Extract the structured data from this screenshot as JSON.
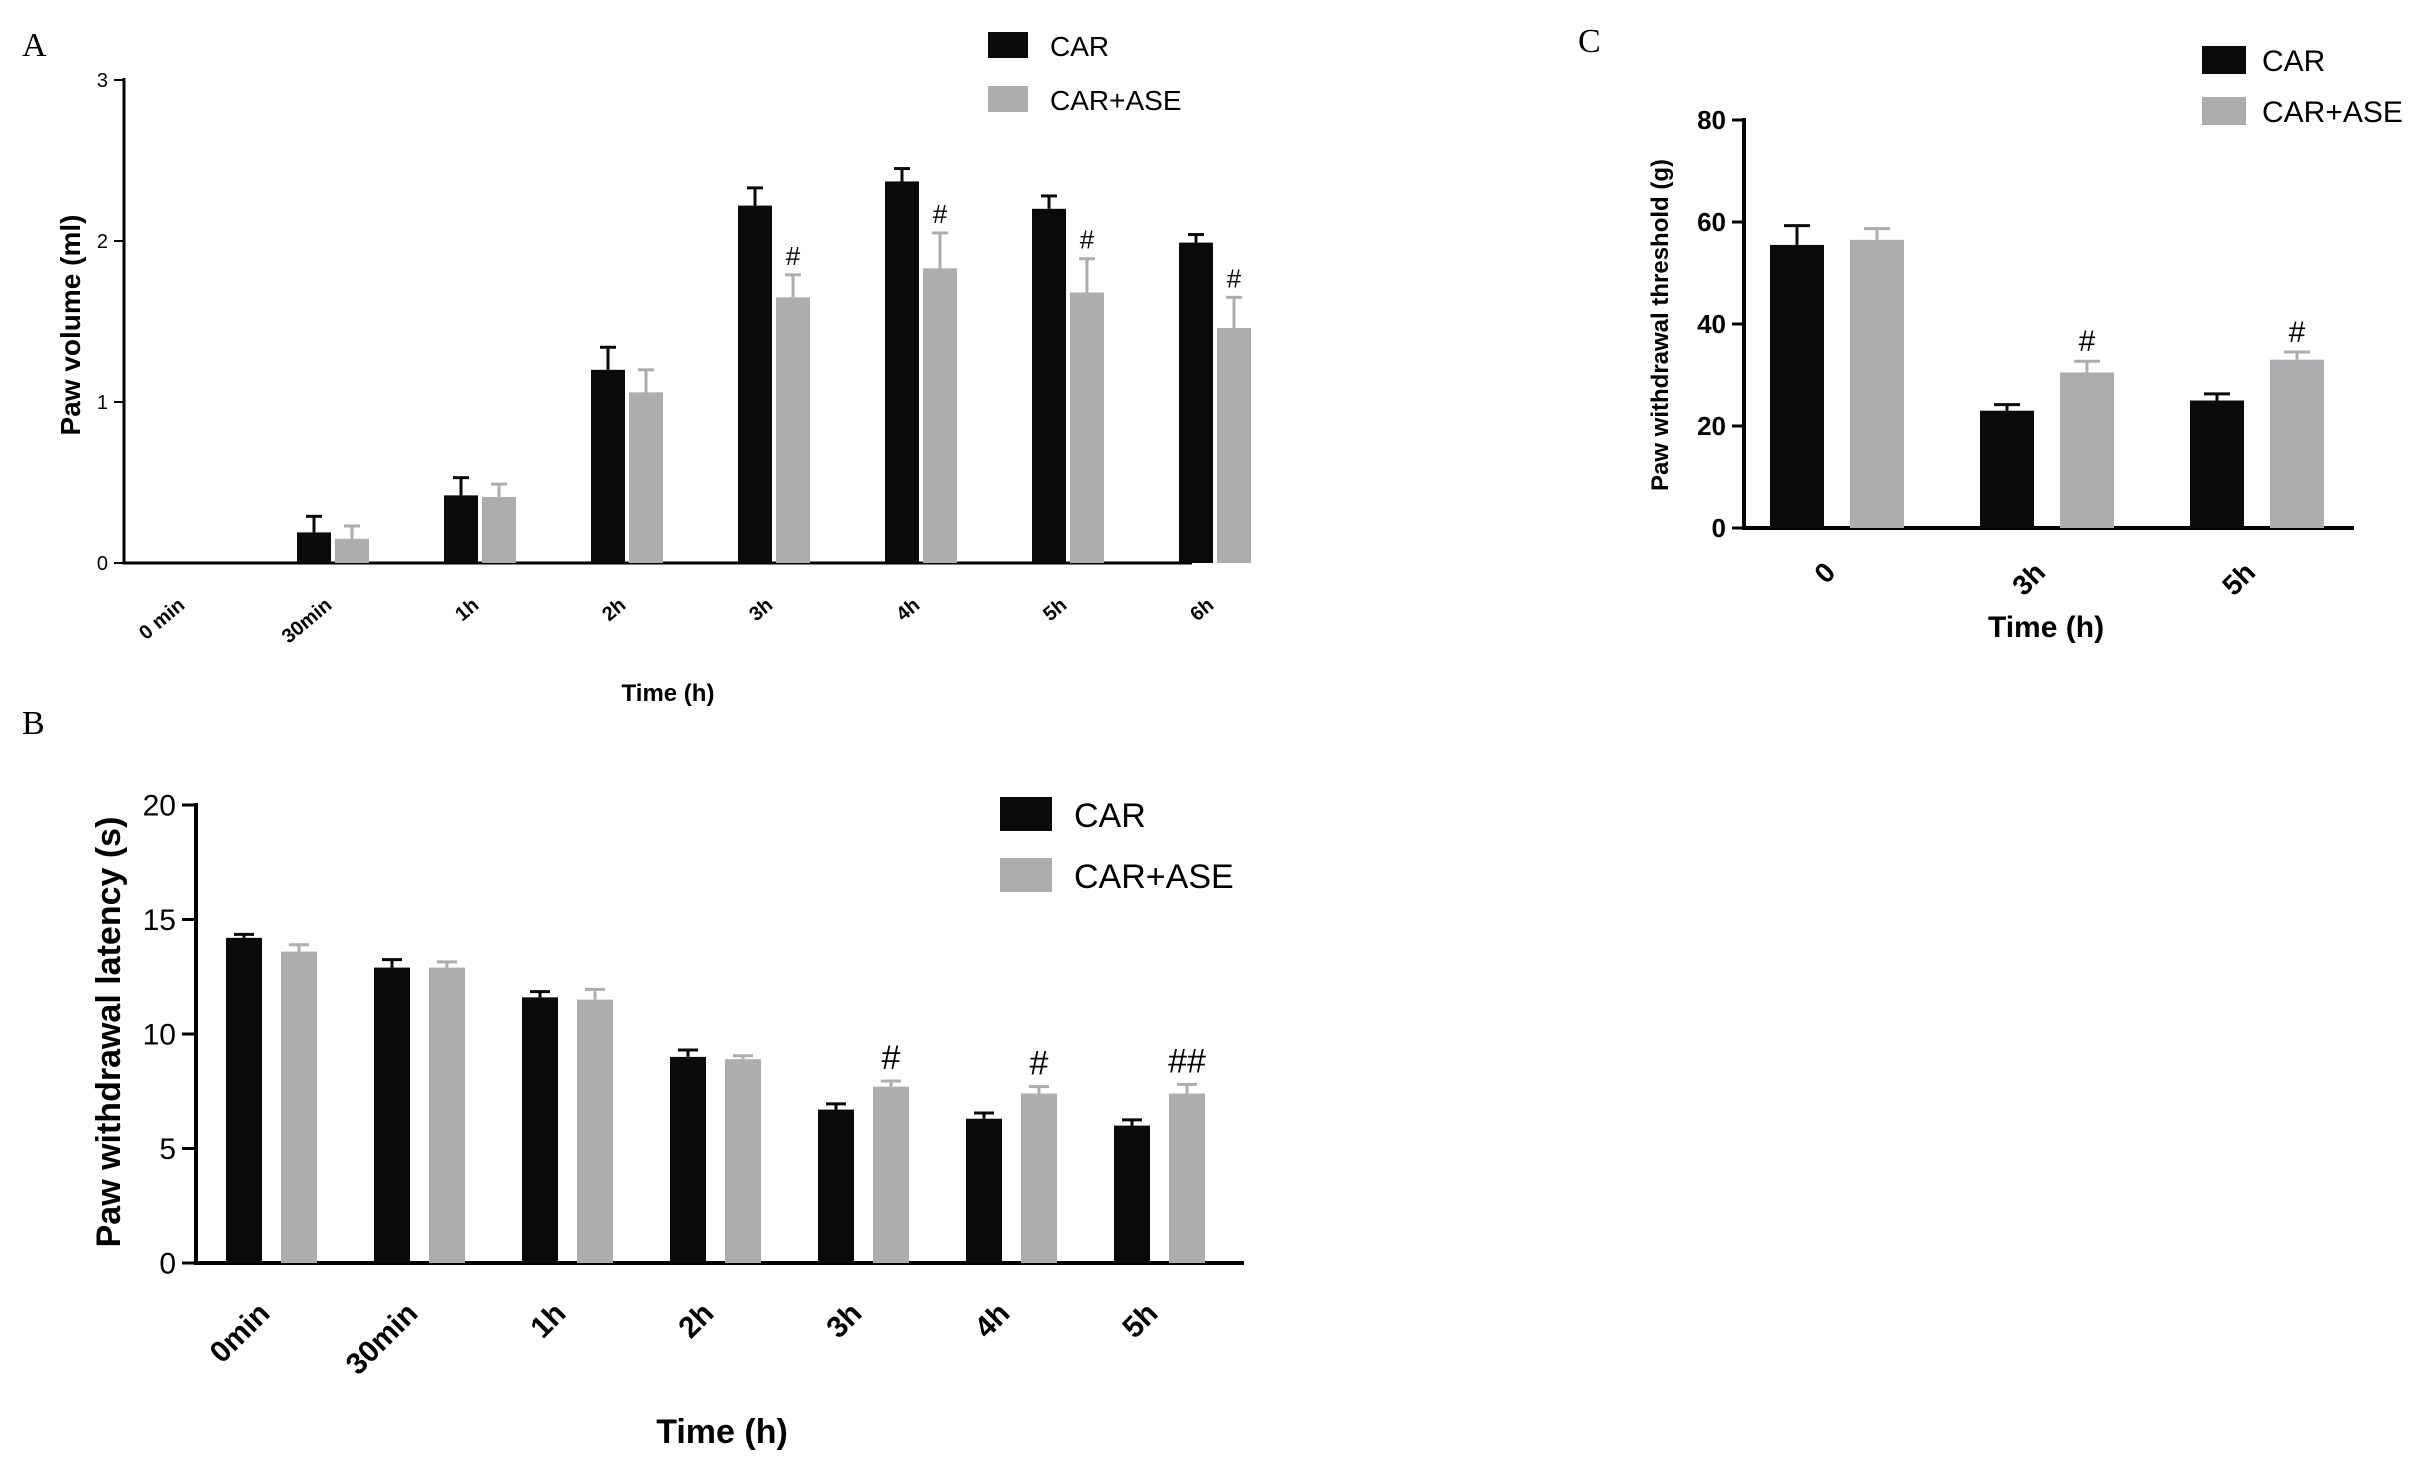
{
  "colors": {
    "car": "#0a0a0a",
    "car_ase": "#adadaf",
    "axis": "#000000"
  },
  "chart_data": [
    {
      "panel": "A",
      "type": "bar",
      "title": "",
      "xlabel": "Time (h)",
      "ylabel": "Paw volume (ml)",
      "ylim": [
        0,
        3
      ],
      "yticks": [
        "0",
        "1",
        "2",
        "3"
      ],
      "categories": [
        "0 min",
        "30min",
        "1h",
        "2h",
        "3h",
        "4h",
        "5h",
        "6h"
      ],
      "legend": [
        "CAR",
        "CAR+ASE"
      ],
      "legend_position": "top-right",
      "series": [
        {
          "name": "CAR",
          "values": [
            0,
            0.19,
            0.42,
            1.2,
            2.22,
            2.37,
            2.2,
            1.99
          ],
          "errors": [
            0,
            0.1,
            0.11,
            0.14,
            0.11,
            0.08,
            0.08,
            0.05
          ]
        },
        {
          "name": "CAR+ASE",
          "values": [
            0,
            0.15,
            0.41,
            1.06,
            1.65,
            1.83,
            1.68,
            1.46
          ],
          "errors": [
            0,
            0.08,
            0.08,
            0.14,
            0.14,
            0.22,
            0.21,
            0.19
          ]
        }
      ],
      "annotations": [
        {
          "category": "3h",
          "series": "CAR+ASE",
          "text": "#"
        },
        {
          "category": "4h",
          "series": "CAR+ASE",
          "text": "#"
        },
        {
          "category": "5h",
          "series": "CAR+ASE",
          "text": "#"
        },
        {
          "category": "6h",
          "series": "CAR+ASE",
          "text": "#"
        }
      ]
    },
    {
      "panel": "B",
      "type": "bar",
      "title": "",
      "xlabel": "Time (h)",
      "ylabel": "Paw withdrawal latency (s)",
      "ylim": [
        0,
        20
      ],
      "yticks": [
        "0",
        "5",
        "10",
        "15",
        "20"
      ],
      "categories": [
        "0min",
        "30min",
        "1h",
        "2h",
        "3h",
        "4h",
        "5h"
      ],
      "legend": [
        "CAR",
        "CAR+ASE"
      ],
      "legend_position": "top-right",
      "series": [
        {
          "name": "CAR",
          "values": [
            14.2,
            12.9,
            11.6,
            9.0,
            6.7,
            6.3,
            6.0
          ],
          "errors": [
            0.15,
            0.35,
            0.25,
            0.3,
            0.25,
            0.25,
            0.25
          ]
        },
        {
          "name": "CAR+ASE",
          "values": [
            13.6,
            12.9,
            11.5,
            8.9,
            7.7,
            7.4,
            7.4
          ],
          "errors": [
            0.3,
            0.25,
            0.45,
            0.15,
            0.25,
            0.3,
            0.4
          ]
        }
      ],
      "annotations": [
        {
          "category": "3h",
          "series": "CAR+ASE",
          "text": "#"
        },
        {
          "category": "4h",
          "series": "CAR+ASE",
          "text": "#"
        },
        {
          "category": "5h",
          "series": "CAR+ASE",
          "text": "##"
        }
      ]
    },
    {
      "panel": "C",
      "type": "bar",
      "title": "",
      "xlabel": "Time (h)",
      "ylabel": "Paw withdrawal threshold (g)",
      "ylim": [
        0,
        80
      ],
      "yticks": [
        "0",
        "20",
        "40",
        "60",
        "80"
      ],
      "categories": [
        "0",
        "3h",
        "5h"
      ],
      "legend": [
        "CAR",
        "CAR+ASE"
      ],
      "legend_position": "top-right",
      "series": [
        {
          "name": "CAR",
          "values": [
            55.5,
            23.0,
            25.0
          ],
          "errors": [
            3.8,
            1.2,
            1.3
          ]
        },
        {
          "name": "CAR+ASE",
          "values": [
            56.5,
            30.5,
            33.0
          ],
          "errors": [
            2.2,
            2.2,
            1.5
          ]
        }
      ],
      "annotations": [
        {
          "category": "3h",
          "series": "CAR+ASE",
          "text": "#"
        },
        {
          "category": "5h",
          "series": "CAR+ASE",
          "text": "#"
        }
      ]
    }
  ]
}
